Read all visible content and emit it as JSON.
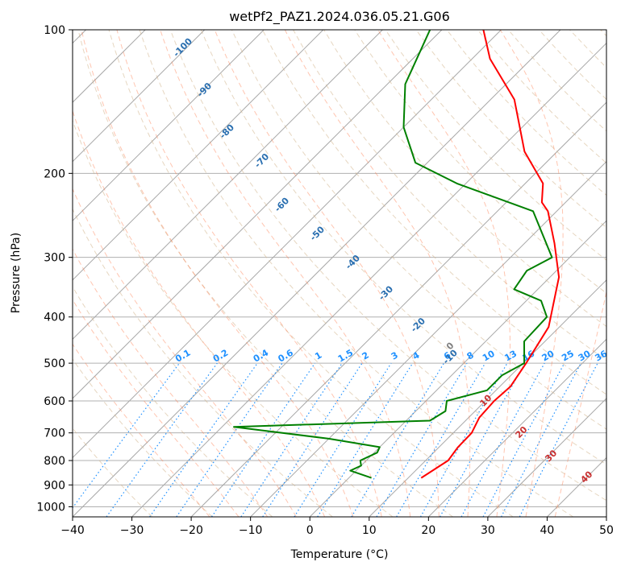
{
  "chart_data": {
    "type": "line",
    "title": "wetPf2_PAZ1.2024.036.05.21.G06",
    "xlabel": "Temperature (°C)",
    "ylabel": "Pressure (hPa)",
    "xlim": [
      -40,
      50
    ],
    "ylim": [
      1050,
      100
    ],
    "y_scale": "log",
    "skew": true,
    "grid": true,
    "x_ticks": [
      -40,
      -30,
      -20,
      -10,
      0,
      10,
      20,
      30,
      40,
      50
    ],
    "y_ticks": [
      1000,
      900,
      800,
      700,
      600,
      500,
      400,
      300,
      200,
      100
    ],
    "dry_adiabat_labels": [
      "-100",
      "-90",
      "-80",
      "-70",
      "-60",
      "-50",
      "-40",
      "-30",
      "-20",
      "-10"
    ],
    "moist_adiabat_labels": [
      "0",
      "10",
      "20",
      "30",
      "40"
    ],
    "mixing_ratio_labels": [
      "0.1",
      "0.2",
      "0.4",
      "0.6",
      "1",
      "1.5",
      "2",
      "3",
      "4",
      "6",
      "8",
      "10",
      "13",
      "16",
      "20",
      "25",
      "30",
      "36"
    ],
    "colors": {
      "temperature": "#ff0000",
      "dewpoint": "#008000",
      "dry_adiabat": "#d2b48c",
      "moist_adiabat": "#ff7f50",
      "mixing_ratio": "#1e90ff",
      "isotherm_grid": "#808080"
    },
    "series": [
      {
        "name": "temperature",
        "points": [
          {
            "t": 12.2,
            "p": 870
          },
          {
            "t": 13.8,
            "p": 800
          },
          {
            "t": 13.2,
            "p": 750
          },
          {
            "t": 13.1,
            "p": 700
          },
          {
            "t": 11.8,
            "p": 650
          },
          {
            "t": 11.5,
            "p": 600
          },
          {
            "t": 11.8,
            "p": 560
          },
          {
            "t": 10.5,
            "p": 500
          },
          {
            "t": 8.2,
            "p": 420
          },
          {
            "t": 1.5,
            "p": 330
          },
          {
            "t": -5.0,
            "p": 280
          },
          {
            "t": -11.5,
            "p": 240
          },
          {
            "t": -14.0,
            "p": 230
          },
          {
            "t": -17.0,
            "p": 210
          },
          {
            "t": -25.5,
            "p": 180
          },
          {
            "t": -36.0,
            "p": 140
          },
          {
            "t": -47.0,
            "p": 115
          },
          {
            "t": -53.0,
            "p": 100
          }
        ]
      },
      {
        "name": "dewpoint",
        "points": [
          {
            "t": 3.8,
            "p": 870
          },
          {
            "t": -1.0,
            "p": 840
          },
          {
            "t": 0.0,
            "p": 820
          },
          {
            "t": -1.0,
            "p": 800
          },
          {
            "t": 0.5,
            "p": 770
          },
          {
            "t": 0.0,
            "p": 750
          },
          {
            "t": -10.0,
            "p": 720
          },
          {
            "t": -28.0,
            "p": 680
          },
          {
            "t": 4.0,
            "p": 660
          },
          {
            "t": 5.0,
            "p": 630
          },
          {
            "t": 3.5,
            "p": 600
          },
          {
            "t": 8.5,
            "p": 570
          },
          {
            "t": 8.5,
            "p": 530
          },
          {
            "t": 10.2,
            "p": 500
          },
          {
            "t": 6.5,
            "p": 450
          },
          {
            "t": 6.2,
            "p": 400
          },
          {
            "t": 2.5,
            "p": 370
          },
          {
            "t": -4.0,
            "p": 350
          },
          {
            "t": -5.0,
            "p": 320
          },
          {
            "t": -3.0,
            "p": 300
          },
          {
            "t": -14.0,
            "p": 240
          },
          {
            "t": -31.5,
            "p": 210
          },
          {
            "t": -42.0,
            "p": 190
          },
          {
            "t": -50.0,
            "p": 160
          },
          {
            "t": -57.0,
            "p": 130
          },
          {
            "t": -62.0,
            "p": 100
          }
        ]
      }
    ]
  }
}
